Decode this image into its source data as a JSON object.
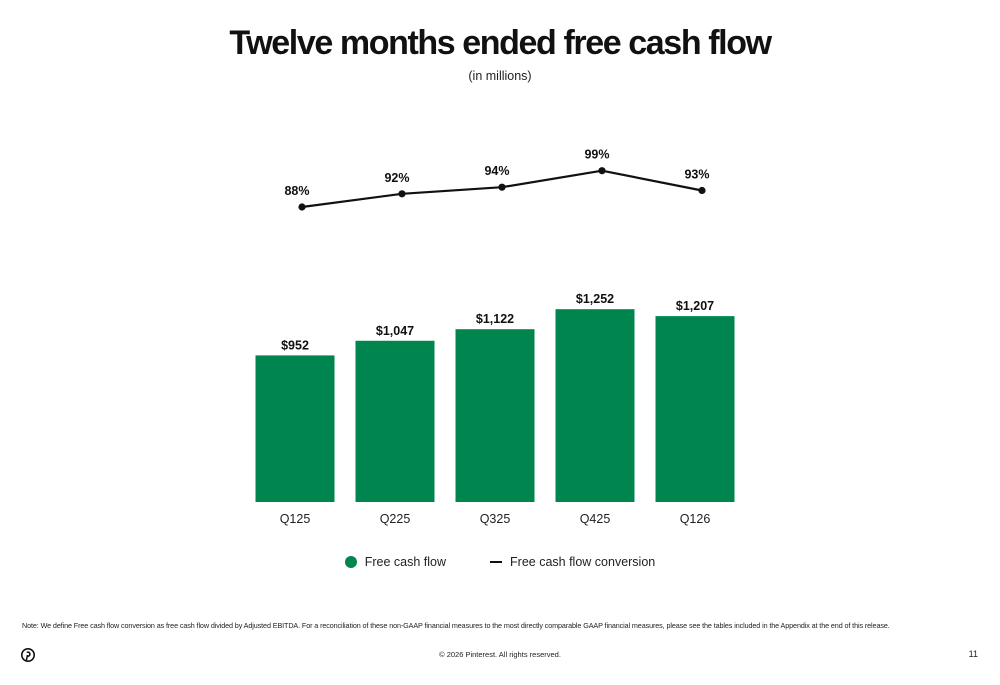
{
  "header": {
    "title": "Twelve months ended free cash flow",
    "subtitle": "(in millions)"
  },
  "chart_data": {
    "type": "bar",
    "categories": [
      "Q125",
      "Q225",
      "Q325",
      "Q425",
      "Q126"
    ],
    "series": [
      {
        "name": "Free cash flow",
        "type": "bar",
        "values": [
          952,
          1047,
          1122,
          1252,
          1207
        ],
        "labels": [
          "$952",
          "$1,047",
          "$1,122",
          "$1,252",
          "$1,207"
        ],
        "color": "#00854F"
      },
      {
        "name": "Free cash flow conversion",
        "type": "line",
        "values": [
          88,
          92,
          94,
          99,
          93
        ],
        "labels": [
          "88%",
          "92%",
          "94%",
          "99%",
          "93%"
        ],
        "color": "#111111"
      }
    ],
    "legend": "bottom",
    "grid": false
  },
  "legend": {
    "items": [
      {
        "label": "Free cash flow",
        "marker": "dot",
        "color": "#00854F"
      },
      {
        "label": "Free cash flow conversion",
        "marker": "line",
        "color": "#111111"
      }
    ]
  },
  "footer": {
    "note": "Note: We define Free cash flow conversion as free cash flow divided by Adjusted EBITDA. For a reconciliation of these non-GAAP financial measures to the most directly comparable GAAP financial measures, please see the tables included in the Appendix at the end of this release.",
    "copyright": "© 2026 Pinterest. All rights reserved.",
    "page_number": "11",
    "logo_icon": "pinterest-logo-icon"
  }
}
